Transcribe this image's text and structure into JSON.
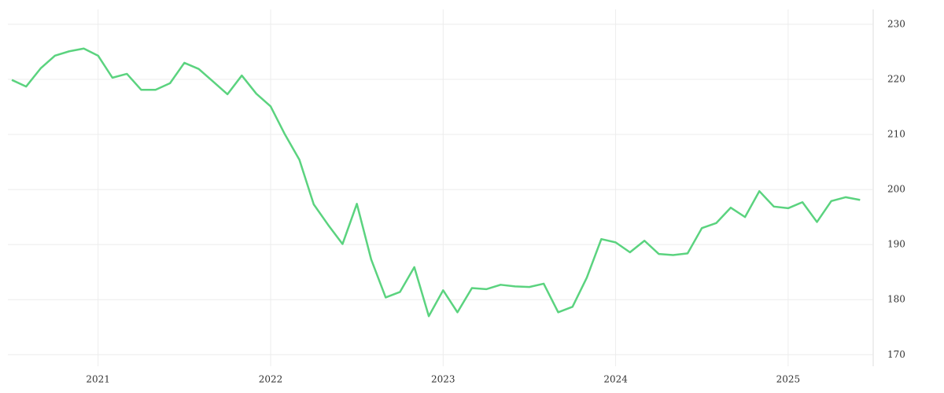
{
  "chart_data": {
    "type": "line",
    "color": "#5bd37f",
    "grid": true,
    "y_axis_side": "right",
    "x": [
      2020.5,
      2020.583,
      2020.667,
      2020.75,
      2020.833,
      2020.917,
      2021,
      2021.083,
      2021.167,
      2021.25,
      2021.333,
      2021.417,
      2021.5,
      2021.583,
      2021.667,
      2021.75,
      2021.833,
      2021.917,
      2022,
      2022.083,
      2022.167,
      2022.25,
      2022.333,
      2022.417,
      2022.5,
      2022.583,
      2022.667,
      2022.75,
      2022.833,
      2022.917,
      2023,
      2023.083,
      2023.167,
      2023.25,
      2023.333,
      2023.417,
      2023.5,
      2023.583,
      2023.667,
      2023.75,
      2023.833,
      2023.917,
      2024,
      2024.083,
      2024.167,
      2024.25,
      2024.333,
      2024.417,
      2024.5,
      2024.583,
      2024.667,
      2024.75,
      2024.833,
      2024.917,
      2025,
      2025.083,
      2025.167,
      2025.25,
      2025.333,
      2025.417
    ],
    "values": [
      219.9,
      218.7,
      222,
      224.3,
      225.1,
      225.6,
      224.3,
      220.3,
      221,
      218.1,
      218.1,
      219.3,
      223,
      221.9,
      219.6,
      217.3,
      220.7,
      217.4,
      215.1,
      210,
      205.4,
      197.3,
      193.6,
      190.1,
      197.4,
      187.3,
      180.4,
      181.4,
      185.9,
      177,
      181.7,
      177.7,
      182.1,
      181.9,
      182.7,
      182.4,
      182.3,
      182.9,
      177.7,
      178.7,
      184,
      191,
      190.4,
      188.6,
      190.7,
      188.3,
      188.1,
      188.4,
      193,
      193.9,
      196.7,
      195,
      199.7,
      196.9,
      196.6,
      197.7,
      194.1,
      197.9,
      198.6,
      198.1
    ],
    "xlim": [
      2020.477,
      2025.493
    ],
    "xticks": [
      2021,
      2022,
      2023,
      2024,
      2025
    ],
    "ylim": [
      167.9,
      232.7
    ],
    "yticks": [
      170,
      180,
      190,
      200,
      210,
      220,
      230
    ]
  }
}
